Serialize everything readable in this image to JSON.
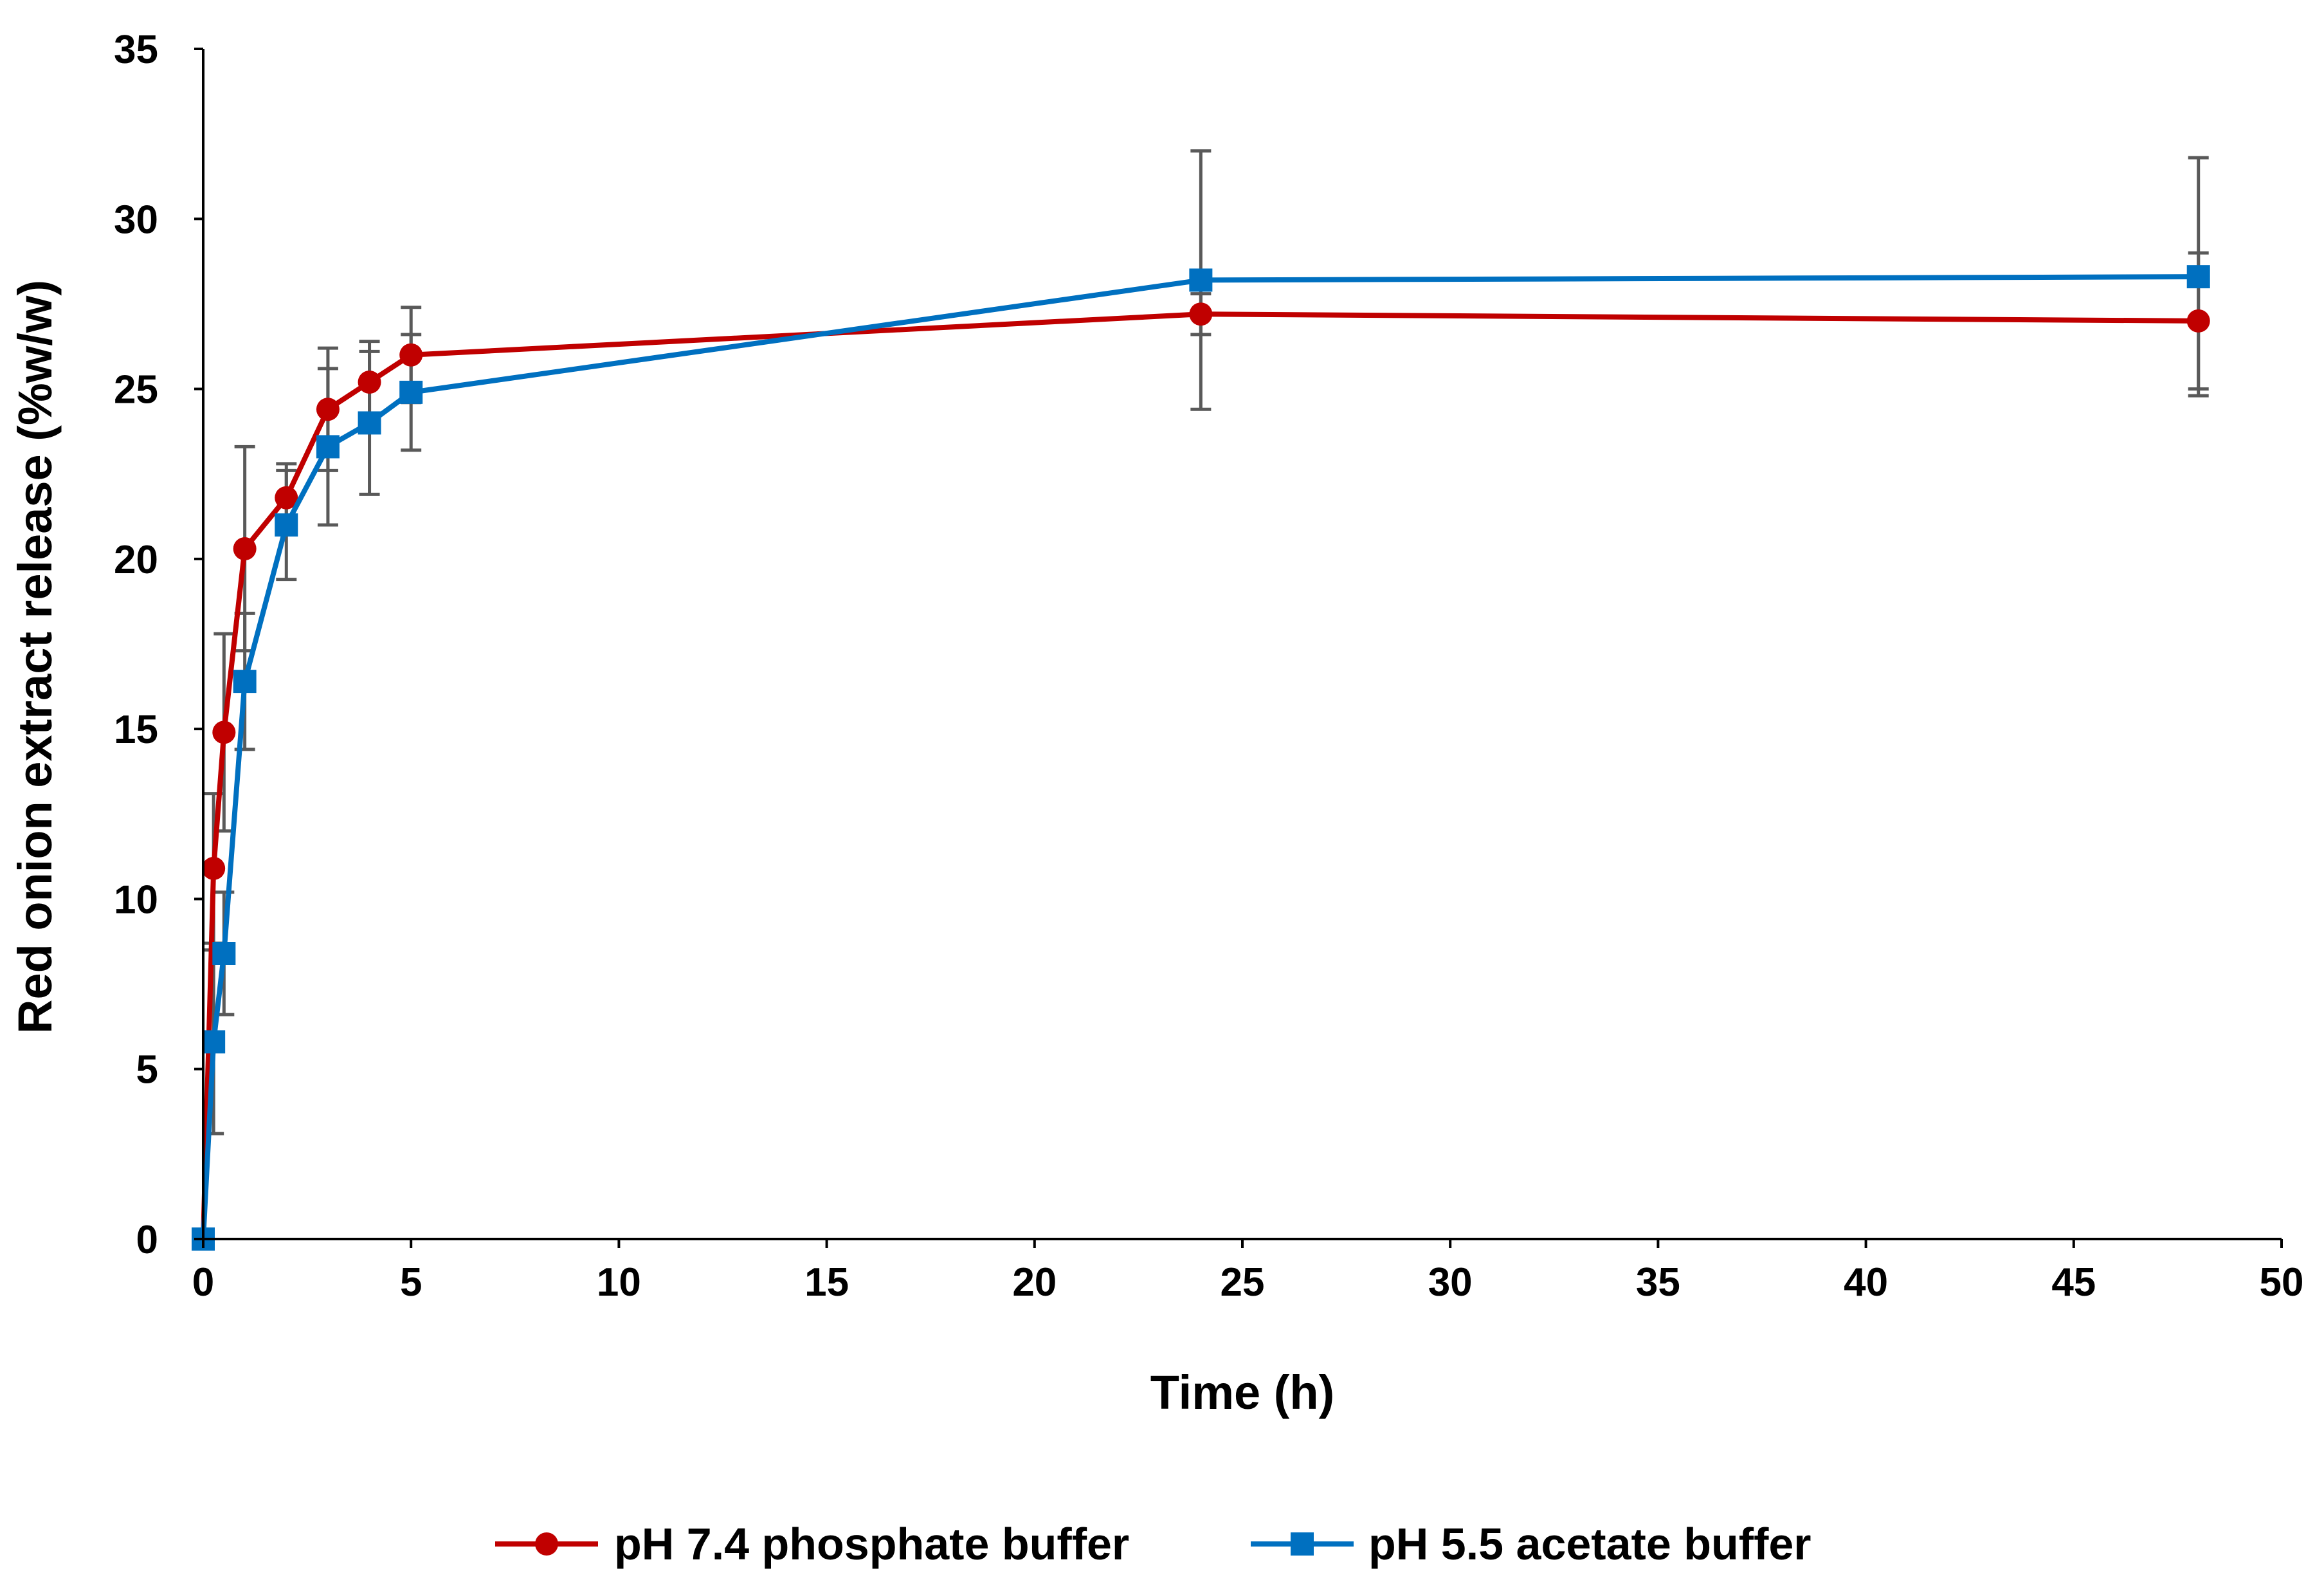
{
  "chart_data": {
    "type": "line",
    "title": "",
    "xlabel": "Time (h)",
    "ylabel": "Red onion extract release (%w/w)",
    "xlim": [
      0,
      50
    ],
    "ylim": [
      0,
      35
    ],
    "xticks": [
      0,
      5,
      10,
      15,
      20,
      25,
      30,
      35,
      40,
      45,
      50
    ],
    "yticks": [
      0,
      5,
      10,
      15,
      20,
      25,
      30,
      35
    ],
    "grid": false,
    "legend_position": "bottom",
    "error_bar_color": "#595959",
    "series": [
      {
        "name": "pH 7.4 phosphate buffer",
        "color": "#C00000",
        "marker": "circle",
        "x": [
          0,
          0.25,
          0.5,
          1,
          2,
          3,
          4,
          5,
          24,
          48
        ],
        "y": [
          0,
          10.9,
          14.9,
          20.3,
          21.8,
          24.4,
          25.2,
          26.0,
          27.2,
          27.0
        ],
        "error": [
          0,
          2.2,
          2.9,
          3.0,
          1.0,
          1.8,
          1.2,
          1.4,
          0.6,
          2.0
        ]
      },
      {
        "name": "pH 5.5 acetate buffer",
        "color": "#0070C0",
        "marker": "square",
        "x": [
          0,
          0.25,
          0.5,
          1,
          2,
          3,
          4,
          5,
          24,
          48
        ],
        "y": [
          0,
          5.8,
          8.4,
          16.4,
          21.0,
          23.3,
          24.0,
          24.9,
          28.2,
          28.3
        ],
        "error": [
          0,
          2.7,
          1.8,
          2.0,
          1.6,
          2.3,
          2.1,
          1.7,
          3.8,
          3.5
        ]
      }
    ]
  }
}
